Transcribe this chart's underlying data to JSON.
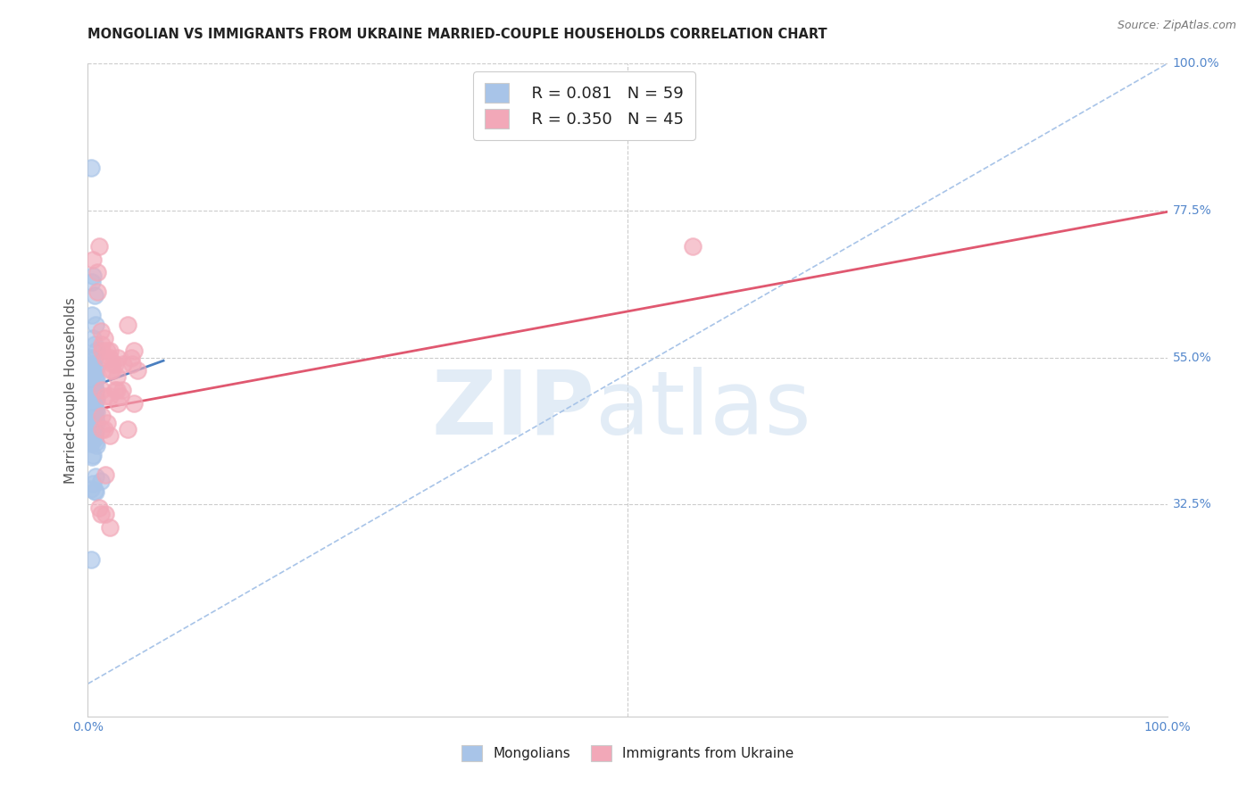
{
  "title": "MONGOLIAN VS IMMIGRANTS FROM UKRAINE MARRIED-COUPLE HOUSEHOLDS CORRELATION CHART",
  "source": "Source: ZipAtlas.com",
  "ylabel": "Married-couple Households",
  "xlim": [
    0.0,
    1.0
  ],
  "ylim": [
    0.0,
    1.0
  ],
  "ytick_positions": [
    0.325,
    0.55,
    0.775,
    1.0
  ],
  "ytick_labels": [
    "32.5%",
    "55.0%",
    "77.5%",
    "100.0%"
  ],
  "legend_r1": "R = 0.081",
  "legend_n1": "N = 59",
  "legend_r2": "R = 0.350",
  "legend_n2": "N = 45",
  "legend_label1": "Mongolians",
  "legend_label2": "Immigrants from Ukraine",
  "blue_color": "#a8c4e8",
  "pink_color": "#f2a8b8",
  "blue_line_color": "#4a7fc0",
  "pink_line_color": "#e05870",
  "dashed_line_color": "#a8c4e8",
  "blue_scatter_x": [
    0.003,
    0.005,
    0.004,
    0.006,
    0.004,
    0.007,
    0.005,
    0.006,
    0.008,
    0.003,
    0.006,
    0.005,
    0.004,
    0.006,
    0.007,
    0.005,
    0.004,
    0.006,
    0.008,
    0.007,
    0.005,
    0.004,
    0.006,
    0.007,
    0.005,
    0.004,
    0.006,
    0.007,
    0.003,
    0.008,
    0.005,
    0.004,
    0.006,
    0.007,
    0.005,
    0.008,
    0.006,
    0.007,
    0.003,
    0.008,
    0.005,
    0.004,
    0.006,
    0.007,
    0.005,
    0.003,
    0.006,
    0.007,
    0.003,
    0.008,
    0.005,
    0.004,
    0.012,
    0.007,
    0.005,
    0.003,
    0.006,
    0.007,
    0.003
  ],
  "blue_scatter_y": [
    0.84,
    0.675,
    0.665,
    0.645,
    0.615,
    0.6,
    0.58,
    0.57,
    0.56,
    0.55,
    0.548,
    0.54,
    0.538,
    0.536,
    0.53,
    0.528,
    0.525,
    0.52,
    0.518,
    0.516,
    0.51,
    0.508,
    0.506,
    0.5,
    0.498,
    0.496,
    0.494,
    0.49,
    0.488,
    0.486,
    0.48,
    0.478,
    0.476,
    0.47,
    0.468,
    0.466,
    0.46,
    0.458,
    0.456,
    0.45,
    0.448,
    0.44,
    0.438,
    0.436,
    0.43,
    0.428,
    0.426,
    0.42,
    0.418,
    0.416,
    0.4,
    0.398,
    0.36,
    0.368,
    0.356,
    0.348,
    0.346,
    0.344,
    0.24
  ],
  "pink_scatter_x": [
    0.005,
    0.01,
    0.009,
    0.009,
    0.013,
    0.015,
    0.012,
    0.013,
    0.016,
    0.018,
    0.02,
    0.021,
    0.02,
    0.023,
    0.025,
    0.027,
    0.028,
    0.023,
    0.033,
    0.037,
    0.04,
    0.041,
    0.043,
    0.046,
    0.013,
    0.016,
    0.02,
    0.025,
    0.028,
    0.032,
    0.043,
    0.013,
    0.013,
    0.015,
    0.016,
    0.018,
    0.02,
    0.037,
    0.027,
    0.03,
    0.01,
    0.012,
    0.016,
    0.02,
    0.56
  ],
  "pink_scatter_y": [
    0.7,
    0.72,
    0.68,
    0.65,
    0.57,
    0.58,
    0.59,
    0.56,
    0.55,
    0.56,
    0.56,
    0.53,
    0.55,
    0.54,
    0.54,
    0.52,
    0.55,
    0.53,
    0.54,
    0.6,
    0.55,
    0.54,
    0.56,
    0.53,
    0.5,
    0.49,
    0.49,
    0.5,
    0.48,
    0.5,
    0.48,
    0.44,
    0.46,
    0.44,
    0.37,
    0.45,
    0.43,
    0.44,
    0.5,
    0.49,
    0.32,
    0.31,
    0.31,
    0.29,
    0.72
  ],
  "blue_line_x": [
    0.0,
    0.07
  ],
  "blue_line_y_intercept": 0.503,
  "blue_line_slope": 0.6,
  "pink_line_x": [
    0.0,
    1.0
  ],
  "pink_line_y_intercept": 0.468,
  "pink_line_slope": 0.305,
  "dashed_line_x": [
    0.0,
    1.0
  ],
  "dashed_line_y_intercept": 0.05,
  "dashed_line_slope": 0.95
}
